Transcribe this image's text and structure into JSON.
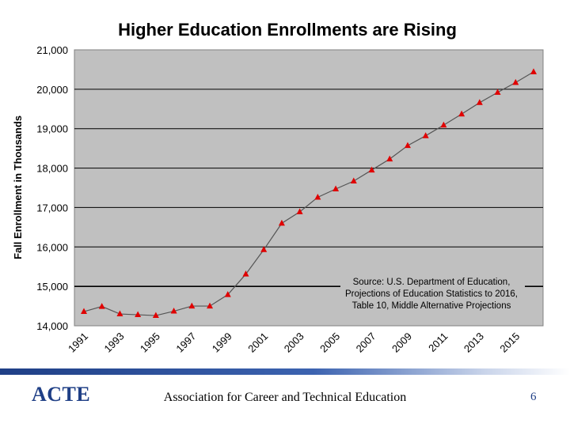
{
  "chart_data": {
    "type": "line",
    "title": "Higher Education Enrollments are Rising",
    "ylabel": "Fall Enrollment in Thousands",
    "xlabel": "",
    "ylim": [
      14000,
      21000
    ],
    "yticks": [
      "14,000",
      "15,000",
      "16,000",
      "17,000",
      "18,000",
      "19,000",
      "20,000",
      "21,000"
    ],
    "ytick_values": [
      14000,
      15000,
      16000,
      17000,
      18000,
      19000,
      20000,
      21000
    ],
    "xticks": [
      "1991",
      "1993",
      "1995",
      "1997",
      "1999",
      "2001",
      "2003",
      "2005",
      "2007",
      "2009",
      "2011",
      "2013",
      "2015"
    ],
    "x": [
      1991,
      1992,
      1993,
      1994,
      1995,
      1996,
      1997,
      1998,
      1999,
      2000,
      2001,
      2002,
      2003,
      2004,
      2005,
      2006,
      2007,
      2008,
      2009,
      2010,
      2011,
      2012,
      2013,
      2014,
      2015,
      2016
    ],
    "series": [
      {
        "values": [
          14360,
          14490,
          14300,
          14280,
          14260,
          14370,
          14500,
          14500,
          14790,
          15310,
          15930,
          16600,
          16890,
          17260,
          17470,
          17670,
          17950,
          18230,
          18570,
          18820,
          19090,
          19370,
          19660,
          19920,
          20170,
          20440
        ]
      }
    ],
    "grid": true,
    "annotation": {
      "lines": [
        "Source: U.S. Department of Education,",
        "Projections of Education Statistics to 2016,",
        "Table 10, Middle Alternative Projections"
      ]
    },
    "colors": {
      "plot_bg": "#c0c0c0",
      "marker": "#e00000",
      "line": "#555555"
    }
  },
  "footer": {
    "organization": "Association for Career and Technical Education",
    "page_number": "6",
    "logo_text": "ACTE"
  }
}
